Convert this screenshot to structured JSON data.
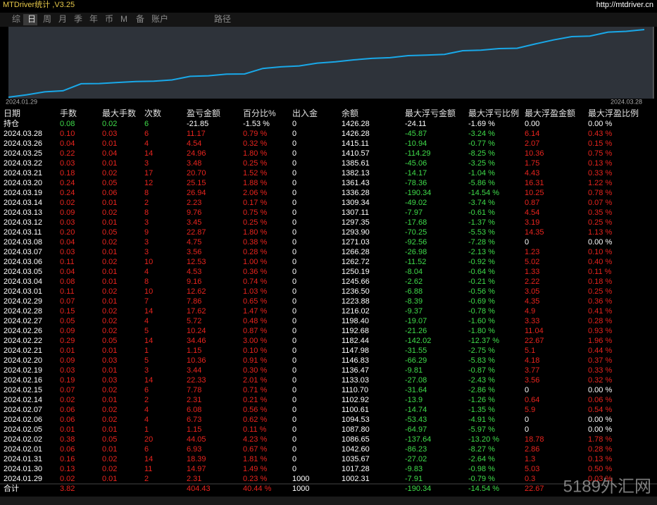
{
  "header": {
    "title": "MTDriver统计 ,V3.25",
    "url": "http://mtdriver.cn"
  },
  "tabs": [
    "综",
    "日",
    "周",
    "月",
    "季",
    "年",
    "币",
    "M",
    "备",
    "账户",
    "路径"
  ],
  "chart": {
    "start_label": "2024.01.29",
    "end_label": "2024.03.28"
  },
  "table": {
    "columns": [
      "日期",
      "手数",
      "最大手数",
      "次数",
      "盈亏金额",
      "百分比%",
      "出入金",
      "余额",
      "最大浮亏金额",
      "最大浮亏比例",
      "最大浮盈金额",
      "最大浮盈比例"
    ],
    "rows": [
      [
        "持仓",
        "0.08",
        "0.02",
        "6",
        "-21.85",
        "-1.53 %",
        "0",
        "1426.28",
        "-24.11",
        "-1.69 %",
        "0.00",
        "0.00 %"
      ],
      [
        "2024.03.28",
        "0.10",
        "0.03",
        "6",
        "11.17",
        "0.79 %",
        "0",
        "1426.28",
        "-45.87",
        "-3.24 %",
        "6.14",
        "0.43 %"
      ],
      [
        "2024.03.26",
        "0.04",
        "0.01",
        "4",
        "4.54",
        "0.32 %",
        "0",
        "1415.11",
        "-10.94",
        "-0.77 %",
        "2.07",
        "0.15 %"
      ],
      [
        "2024.03.25",
        "0.22",
        "0.04",
        "14",
        "24.96",
        "1.80 %",
        "0",
        "1410.57",
        "-114.29",
        "-8.25 %",
        "10.36",
        "0.75 %"
      ],
      [
        "2024.03.22",
        "0.03",
        "0.01",
        "3",
        "3.48",
        "0.25 %",
        "0",
        "1385.61",
        "-45.06",
        "-3.25 %",
        "1.75",
        "0.13 %"
      ],
      [
        "2024.03.21",
        "0.18",
        "0.02",
        "17",
        "20.70",
        "1.52 %",
        "0",
        "1382.13",
        "-14.17",
        "-1.04 %",
        "4.43",
        "0.33 %"
      ],
      [
        "2024.03.20",
        "0.24",
        "0.05",
        "12",
        "25.15",
        "1.88 %",
        "0",
        "1361.43",
        "-78.36",
        "-5.86 %",
        "16.31",
        "1.22 %"
      ],
      [
        "2024.03.19",
        "0.24",
        "0.06",
        "8",
        "26.94",
        "2.06 %",
        "0",
        "1336.28",
        "-190.34",
        "-14.54 %",
        "10.25",
        "0.78 %"
      ],
      [
        "2024.03.14",
        "0.02",
        "0.01",
        "2",
        "2.23",
        "0.17 %",
        "0",
        "1309.34",
        "-49.02",
        "-3.74 %",
        "0.87",
        "0.07 %"
      ],
      [
        "2024.03.13",
        "0.09",
        "0.02",
        "8",
        "9.76",
        "0.75 %",
        "0",
        "1307.11",
        "-7.97",
        "-0.61 %",
        "4.54",
        "0.35 %"
      ],
      [
        "2024.03.12",
        "0.03",
        "0.01",
        "3",
        "3.45",
        "0.25 %",
        "0",
        "1297.35",
        "-17.68",
        "-1.37 %",
        "3.19",
        "0.25 %"
      ],
      [
        "2024.03.11",
        "0.20",
        "0.05",
        "9",
        "22.87",
        "1.80 %",
        "0",
        "1293.90",
        "-70.25",
        "-5.53 %",
        "14.35",
        "1.13 %"
      ],
      [
        "2024.03.08",
        "0.04",
        "0.02",
        "3",
        "4.75",
        "0.38 %",
        "0",
        "1271.03",
        "-92.56",
        "-7.28 %",
        "0",
        "0.00 %"
      ],
      [
        "2024.03.07",
        "0.03",
        "0.01",
        "3",
        "3.56",
        "0.28 %",
        "0",
        "1266.28",
        "-26.98",
        "-2.13 %",
        "1.23",
        "0.10 %"
      ],
      [
        "2024.03.06",
        "0.11",
        "0.02",
        "10",
        "12.53",
        "1.00 %",
        "0",
        "1262.72",
        "-11.52",
        "-0.92 %",
        "5.02",
        "0.40 %"
      ],
      [
        "2024.03.05",
        "0.04",
        "0.01",
        "4",
        "4.53",
        "0.36 %",
        "0",
        "1250.19",
        "-8.04",
        "-0.64 %",
        "1.33",
        "0.11 %"
      ],
      [
        "2024.03.04",
        "0.08",
        "0.01",
        "8",
        "9.16",
        "0.74 %",
        "0",
        "1245.66",
        "-2.62",
        "-0.21 %",
        "2.22",
        "0.18 %"
      ],
      [
        "2024.03.01",
        "0.11",
        "0.02",
        "10",
        "12.62",
        "1.03 %",
        "0",
        "1236.50",
        "-6.88",
        "-0.56 %",
        "3.05",
        "0.25 %"
      ],
      [
        "2024.02.29",
        "0.07",
        "0.01",
        "7",
        "7.86",
        "0.65 %",
        "0",
        "1223.88",
        "-8.39",
        "-0.69 %",
        "4.35",
        "0.36 %"
      ],
      [
        "2024.02.28",
        "0.15",
        "0.02",
        "14",
        "17.62",
        "1.47 %",
        "0",
        "1216.02",
        "-9.37",
        "-0.78 %",
        "4.9",
        "0.41 %"
      ],
      [
        "2024.02.27",
        "0.05",
        "0.02",
        "4",
        "5.72",
        "0.48 %",
        "0",
        "1198.40",
        "-19.07",
        "-1.60 %",
        "3.33",
        "0.28 %"
      ],
      [
        "2024.02.26",
        "0.09",
        "0.02",
        "5",
        "10.24",
        "0.87 %",
        "0",
        "1192.68",
        "-21.26",
        "-1.80 %",
        "11.04",
        "0.93 %"
      ],
      [
        "2024.02.22",
        "0.29",
        "0.05",
        "14",
        "34.46",
        "3.00 %",
        "0",
        "1182.44",
        "-142.02",
        "-12.37 %",
        "22.67",
        "1.96 %"
      ],
      [
        "2024.02.21",
        "0.01",
        "0.01",
        "1",
        "1.15",
        "0.10 %",
        "0",
        "1147.98",
        "-31.55",
        "-2.75 %",
        "5.1",
        "0.44 %"
      ],
      [
        "2024.02.20",
        "0.09",
        "0.03",
        "5",
        "10.36",
        "0.91 %",
        "0",
        "1146.83",
        "-66.29",
        "-5.83 %",
        "4.18",
        "0.37 %"
      ],
      [
        "2024.02.19",
        "0.03",
        "0.01",
        "3",
        "3.44",
        "0.30 %",
        "0",
        "1136.47",
        "-9.81",
        "-0.87 %",
        "3.77",
        "0.33 %"
      ],
      [
        "2024.02.16",
        "0.19",
        "0.03",
        "14",
        "22.33",
        "2.01 %",
        "0",
        "1133.03",
        "-27.08",
        "-2.43 %",
        "3.56",
        "0.32 %"
      ],
      [
        "2024.02.15",
        "0.07",
        "0.02",
        "6",
        "7.78",
        "0.71 %",
        "0",
        "1110.70",
        "-31.64",
        "-2.86 %",
        "0",
        "0.00 %"
      ],
      [
        "2024.02.14",
        "0.02",
        "0.01",
        "2",
        "2.31",
        "0.21 %",
        "0",
        "1102.92",
        "-13.9",
        "-1.26 %",
        "0.64",
        "0.06 %"
      ],
      [
        "2024.02.07",
        "0.06",
        "0.02",
        "4",
        "6.08",
        "0.56 %",
        "0",
        "1100.61",
        "-14.74",
        "-1.35 %",
        "5.9",
        "0.54 %"
      ],
      [
        "2024.02.06",
        "0.06",
        "0.02",
        "4",
        "6.73",
        "0.62 %",
        "0",
        "1094.53",
        "-53.43",
        "-4.91 %",
        "0",
        "0.00 %"
      ],
      [
        "2024.02.05",
        "0.01",
        "0.01",
        "1",
        "1.15",
        "0.11 %",
        "0",
        "1087.80",
        "-64.97",
        "-5.97 %",
        "0",
        "0.00 %"
      ],
      [
        "2024.02.02",
        "0.38",
        "0.05",
        "20",
        "44.05",
        "4.23 %",
        "0",
        "1086.65",
        "-137.64",
        "-13.20 %",
        "18.78",
        "1.78 %"
      ],
      [
        "2024.02.01",
        "0.06",
        "0.01",
        "6",
        "6.93",
        "0.67 %",
        "0",
        "1042.60",
        "-86.23",
        "-8.27 %",
        "2.86",
        "0.28 %"
      ],
      [
        "2024.01.31",
        "0.16",
        "0.02",
        "14",
        "18.39",
        "1.81 %",
        "0",
        "1035.67",
        "-27.02",
        "-2.64 %",
        "1.3",
        "0.13 %"
      ],
      [
        "2024.01.30",
        "0.13",
        "0.02",
        "11",
        "14.97",
        "1.49 %",
        "0",
        "1017.28",
        "-9.83",
        "-0.98 %",
        "5.03",
        "0.50 %"
      ],
      [
        "2024.01.29",
        "0.02",
        "0.01",
        "2",
        "2.31",
        "0.23 %",
        "1000",
        "1002.31",
        "-7.91",
        "-0.79 %",
        "0.3",
        "0.03 %"
      ]
    ],
    "total": [
      "合计",
      "3.82",
      null,
      null,
      "404.43",
      "40.44 %",
      "1000",
      null,
      "-190.34",
      "-14.54 %",
      "22.67",
      null
    ]
  },
  "watermark": "5189外汇网"
}
